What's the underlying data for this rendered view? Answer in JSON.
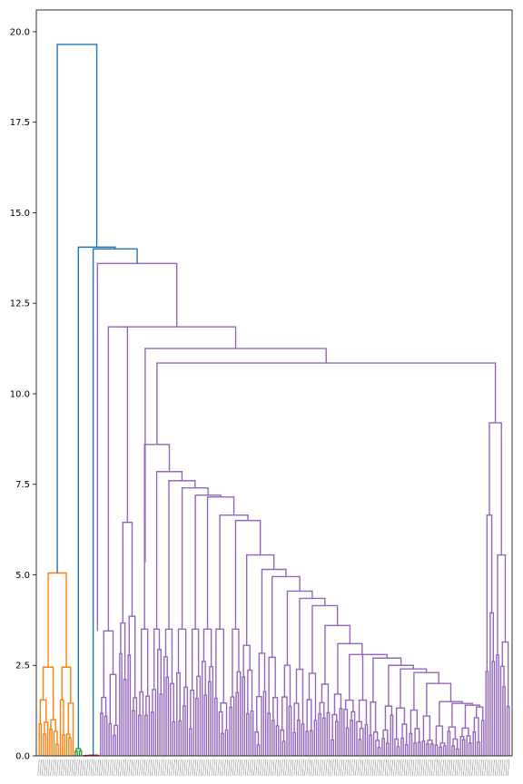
{
  "chart_data": {
    "type": "dendrogram",
    "title": "",
    "xlabel": "",
    "ylabel": "",
    "ylim": [
      0,
      20.6
    ],
    "yticks": [
      "0.0",
      "2.5",
      "5.0",
      "7.5",
      "10.0",
      "12.5",
      "15.0",
      "17.5",
      "20.0"
    ],
    "ytick_values": [
      0,
      2.5,
      5,
      7.5,
      10,
      12.5,
      15,
      17.5,
      20
    ],
    "grid": false,
    "colors": {
      "top_links": "#1f77b4",
      "cluster_orange": "#ff7f0e",
      "cluster_green": "#2ca02c",
      "cluster_red": "#d62728",
      "cluster_purple": "#9467bd"
    },
    "root_height": 19.65,
    "top_merges": [
      {
        "height": 19.65,
        "left": "orange_cluster",
        "right": "node_14.05"
      },
      {
        "height": 14.05,
        "left": "green_cluster",
        "right": "node_14.0"
      },
      {
        "height": 14.0,
        "left": "red_cluster",
        "right": "purple_cluster"
      }
    ],
    "clusters": [
      {
        "name": "orange_cluster",
        "color": "orange",
        "top_height": 5.05,
        "leaf_range": [
          0,
          17
        ],
        "sub_merges": [
          2.45,
          1.7,
          2.45,
          1.9,
          1.6,
          0.8,
          0.6,
          0.3
        ]
      },
      {
        "name": "green_cluster",
        "color": "green",
        "top_height": 0.2,
        "leaf_range": [
          17,
          21
        ]
      },
      {
        "name": "red_cluster",
        "color": "red",
        "top_height": 0.02,
        "leaf_range": [
          21,
          29
        ]
      },
      {
        "name": "purple_cluster",
        "color": "purple",
        "top_height": 13.6,
        "leaf_range": [
          29,
          223
        ],
        "major_merges": [
          13.6,
          11.85,
          11.25,
          10.85,
          9.2,
          8.6,
          7.85,
          7.6,
          7.4,
          7.2,
          7.15,
          6.65,
          6.5,
          6.45,
          6.65,
          5.55,
          5.35,
          5.15,
          4.95,
          4.75,
          4.55,
          4.35,
          4.15,
          3.8,
          3.6,
          3.45,
          3.15,
          3.1,
          2.8,
          2.8,
          2.7,
          2.5,
          2.4,
          2.3,
          2.0,
          1.6,
          1.5,
          1.4
        ]
      }
    ],
    "leaf_count": 223
  }
}
